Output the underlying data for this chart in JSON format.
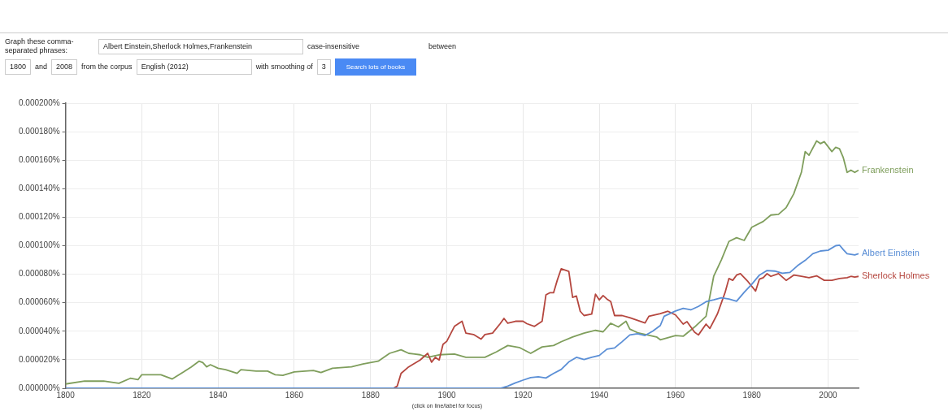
{
  "chart_data": {
    "type": "line",
    "xlim": [
      1800,
      2008
    ],
    "xticks": [
      1800,
      1820,
      1840,
      1860,
      1880,
      1900,
      1920,
      1940,
      1960,
      1980,
      2000
    ],
    "ylim": [
      0,
      0.0002
    ],
    "yticks": [
      {
        "value": 0,
        "label": "0.000000%"
      },
      {
        "value": 2e-05,
        "label": "0.000020%"
      },
      {
        "value": 4e-05,
        "label": "0.000040%"
      },
      {
        "value": 6e-05,
        "label": "0.000060%"
      },
      {
        "value": 8e-05,
        "label": "0.000080%"
      },
      {
        "value": 0.0001,
        "label": "0.000100%"
      },
      {
        "value": 0.00012,
        "label": "0.000120%"
      },
      {
        "value": 0.00014,
        "label": "0.000140%"
      },
      {
        "value": 0.00016,
        "label": "0.000160%"
      },
      {
        "value": 0.00018,
        "label": "0.000180%"
      },
      {
        "value": 0.0002,
        "label": "0.000200%"
      }
    ],
    "grid": true,
    "legend": false,
    "marker": "none",
    "line_style": "solid",
    "series": [
      {
        "name": "Albert Einstein",
        "color": "#5b8fd6",
        "x": [
          1800,
          1850,
          1900,
          1914,
          1916,
          1918,
          1920,
          1922,
          1924,
          1926,
          1928,
          1930,
          1932,
          1934,
          1936,
          1938,
          1940,
          1942,
          1944,
          1946,
          1948,
          1950,
          1952,
          1954,
          1956,
          1957,
          1960,
          1962,
          1964,
          1966,
          1968,
          1970,
          1972,
          1974,
          1976,
          1978,
          1980,
          1982,
          1984,
          1986,
          1988,
          1990,
          1992,
          1994,
          1996,
          1998,
          2000,
          2002,
          2003,
          2004,
          2005,
          2007,
          2008
        ],
        "values": [
          0,
          0,
          0,
          0,
          1.5e-06,
          3.8e-06,
          5.7e-06,
          7.5e-06,
          8e-06,
          7.2e-06,
          1.04e-05,
          1.32e-05,
          1.85e-05,
          2.17e-05,
          2.02e-05,
          2.17e-05,
          2.3e-05,
          2.74e-05,
          2.83e-05,
          3.27e-05,
          3.74e-05,
          3.83e-05,
          3.7e-05,
          4e-05,
          4.4e-05,
          5.05e-05,
          5.42e-05,
          5.6e-05,
          5.5e-05,
          5.74e-05,
          6.07e-05,
          6.2e-05,
          6.35e-05,
          6.26e-05,
          6.1e-05,
          6.73e-05,
          7.3e-05,
          7.94e-05,
          8.26e-05,
          8.22e-05,
          8.07e-05,
          8.13e-05,
          8.6e-05,
          8.97e-05,
          9.44e-05,
          9.63e-05,
          9.68e-05,
          0.0001,
          0.0001004,
          9.72e-05,
          9.44e-05,
          9.35e-05,
          9.44e-05
        ]
      },
      {
        "name": "Sherlock Holmes",
        "color": "#b5473f",
        "x": [
          1800,
          1850,
          1886,
          1887,
          1888,
          1890,
          1893,
          1895,
          1896,
          1897,
          1898,
          1899,
          1900,
          1902,
          1904,
          1905,
          1907,
          1909,
          1910,
          1912,
          1914,
          1915,
          1916,
          1918,
          1920,
          1921,
          1923,
          1925,
          1926,
          1927,
          1928,
          1929,
          1930,
          1932,
          1933,
          1934,
          1935,
          1936,
          1938,
          1939,
          1940,
          1941,
          1942,
          1943,
          1944,
          1946,
          1948,
          1950,
          1952,
          1953,
          1956,
          1958,
          1960,
          1962,
          1963,
          1965,
          1966,
          1968,
          1969,
          1971,
          1973,
          1974,
          1975,
          1976,
          1977,
          1979,
          1981,
          1982,
          1983,
          1984,
          1985,
          1987,
          1989,
          1991,
          1993,
          1995,
          1997,
          1999,
          2001,
          2003,
          2005,
          2006,
          2007,
          2008
        ],
        "values": [
          0,
          0,
          0,
          1.5e-06,
          1.04e-05,
          1.5e-05,
          1.98e-05,
          2.45e-05,
          1.83e-05,
          2.17e-05,
          1.98e-05,
          3.08e-05,
          3.3e-05,
          4.34e-05,
          4.7e-05,
          3.87e-05,
          3.77e-05,
          3.45e-05,
          3.77e-05,
          3.87e-05,
          4.53e-05,
          4.9e-05,
          4.56e-05,
          4.7e-05,
          4.7e-05,
          4.53e-05,
          4.34e-05,
          4.7e-05,
          6.55e-05,
          6.7e-05,
          6.7e-05,
          7.6e-05,
          8.38e-05,
          8.2e-05,
          6.38e-05,
          6.47e-05,
          5.4e-05,
          5.1e-05,
          5.2e-05,
          6.6e-05,
          6.2e-05,
          6.5e-05,
          6.26e-05,
          6.08e-05,
          5.1e-05,
          5.1e-05,
          4.95e-05,
          4.77e-05,
          4.58e-05,
          5.05e-05,
          5.23e-05,
          5.4e-05,
          5.14e-05,
          4.5e-05,
          4.67e-05,
          3.93e-05,
          3.74e-05,
          4.5e-05,
          4.2e-05,
          5.23e-05,
          6.73e-05,
          7.7e-05,
          7.57e-05,
          7.94e-05,
          8.04e-05,
          7.48e-05,
          6.82e-05,
          7.66e-05,
          7.76e-05,
          8.04e-05,
          7.85e-05,
          8.04e-05,
          7.57e-05,
          7.94e-05,
          7.85e-05,
          7.76e-05,
          7.89e-05,
          7.57e-05,
          7.57e-05,
          7.7e-05,
          7.76e-05,
          7.85e-05,
          7.8e-05,
          7.85e-05
        ]
      },
      {
        "name": "Frankenstein",
        "color": "#7f9e5c",
        "x": [
          1800,
          1805,
          1810,
          1814,
          1817,
          1819,
          1820,
          1825,
          1828,
          1831,
          1833,
          1835,
          1836,
          1837,
          1838,
          1840,
          1842,
          1845,
          1846,
          1850,
          1853,
          1855,
          1857,
          1860,
          1865,
          1867,
          1870,
          1875,
          1878,
          1882,
          1885,
          1888,
          1890,
          1893,
          1895,
          1898,
          1902,
          1905,
          1910,
          1913,
          1916,
          1919,
          1922,
          1925,
          1928,
          1930,
          1933,
          1936,
          1939,
          1941,
          1943,
          1945,
          1947,
          1948,
          1950,
          1955,
          1956,
          1960,
          1962,
          1965,
          1968,
          1970,
          1972,
          1974,
          1976,
          1978,
          1980,
          1983,
          1985,
          1987,
          1989,
          1991,
          1993,
          1994,
          1995,
          1997,
          1998,
          1999,
          2001,
          2002,
          2003,
          2004,
          2005,
          2006,
          2007,
          2008
        ],
        "values": [
          3e-06,
          5e-06,
          5e-06,
          3.5e-06,
          7e-06,
          6e-06,
          9.5e-06,
          9.5e-06,
          6.5e-06,
          1.15e-05,
          1.5e-05,
          1.9e-05,
          1.8e-05,
          1.5e-05,
          1.65e-05,
          1.4e-05,
          1.3e-05,
          1.05e-05,
          1.3e-05,
          1.2e-05,
          1.2e-05,
          9.5e-06,
          9e-06,
          1.15e-05,
          1.25e-05,
          1.1e-05,
          1.4e-05,
          1.5e-05,
          1.7e-05,
          1.9e-05,
          2.45e-05,
          2.7e-05,
          2.45e-05,
          2.35e-05,
          2.17e-05,
          2.35e-05,
          2.4e-05,
          2.17e-05,
          2.17e-05,
          2.55e-05,
          3e-05,
          2.86e-05,
          2.45e-05,
          2.9e-05,
          3e-05,
          3.26e-05,
          3.6e-05,
          3.87e-05,
          4.06e-05,
          3.96e-05,
          4.56e-05,
          4.3e-05,
          4.7e-05,
          4.15e-05,
          3.9e-05,
          3.6e-05,
          3.4e-05,
          3.7e-05,
          3.65e-05,
          4.3e-05,
          5.05e-05,
          7.85e-05,
          9e-05,
          0.000103,
          0.0001056,
          0.0001037,
          0.000113,
          0.000117,
          0.0001215,
          0.000122,
          0.0001267,
          0.0001364,
          0.0001514,
          0.000166,
          0.0001635,
          0.0001735,
          0.0001716,
          0.000173,
          0.000166,
          0.000169,
          0.000168,
          0.0001617,
          0.0001514,
          0.000153,
          0.0001514,
          0.000153
        ]
      }
    ],
    "annotations": [
      "Graph these comma-separated phrases:",
      "Albert Einstein,Sherlock Holmes,Frankenstein",
      "case-insensitive",
      "between",
      "1800",
      "and",
      "2008",
      "from the corpus",
      "English (2012)",
      "with smoothing of",
      "3",
      "Search lots of books",
      "(click on line/label for focus)"
    ]
  }
}
